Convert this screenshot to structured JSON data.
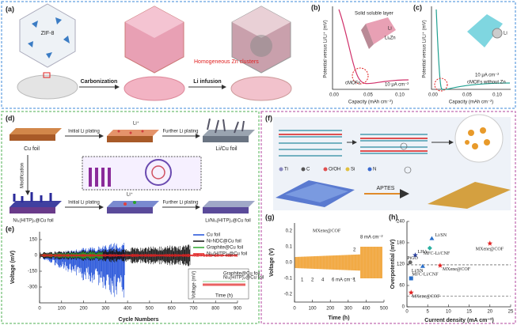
{
  "panels": {
    "a": {
      "label": "(a)",
      "material": "ZIF-8",
      "step1": "Carbonization",
      "step2": "Li infusion",
      "note": "Homogeneous Zn clusters"
    },
    "b": {
      "label": "(b)",
      "ylabel": "Potential versus Li/Li⁺ (mV)",
      "xlabel": "Capacity (mAh cm⁻²)",
      "xticks": [
        "0.00",
        "0.05",
        "0.10"
      ],
      "layer": "Solid soluble layer",
      "li": "Li",
      "alloy": "LiₓZn",
      "curve": "cMOFs",
      "rate": "10 μA cm⁻²"
    },
    "c": {
      "label": "(c)",
      "ylabel": "Potential versus Li/Li⁺ (mV)",
      "xlabel": "Capacity (mAh cm⁻²)",
      "xticks": [
        "0.00",
        "0.05",
        "0.10"
      ],
      "li": "Li",
      "curve": "cMOFs without Zn",
      "rate": "10 μA cm⁻²"
    },
    "d": {
      "label": "(d)",
      "cu": "Cu foil",
      "initial": "Initial Li plating",
      "further": "Further Li plating",
      "licu": "Li/Cu foil",
      "modification": "Modification",
      "ion": "Li⁺",
      "mof": "Ni₃(HITP)₂@Cu foil",
      "initial2": "Initial Li plating",
      "further2": "Further Li plating",
      "ion2": "Li⁺",
      "limof": "Li/Ni₃(HITP)₂@Cu foil"
    },
    "e": {
      "label": "(e)",
      "ylabel": "Voltage (mV)",
      "xlabel": "Cycle Numbers",
      "yticks": [
        150,
        0,
        -150,
        -300
      ],
      "xticks": [
        0,
        100,
        200,
        300,
        400,
        500,
        600,
        700,
        800,
        900
      ],
      "legend": [
        {
          "name": "Cu foil",
          "color": "#1f4fd8"
        },
        {
          "name": "Ni-NDC@Cu foil",
          "color": "#111111"
        },
        {
          "name": "Graphite@Cu foil",
          "color": "#2aa52a"
        },
        {
          "name": "Ni₃(HITP)₂@Cu foil",
          "color": "#e02020"
        }
      ],
      "inset": {
        "ylabel": "Voltage (mV)",
        "xlabel": "Time (h)",
        "legend": [
          "Graphite@Cu foil",
          "Ni₃(HITP)₂@Cu foil"
        ]
      }
    },
    "f": {
      "label": "(f)",
      "legend": [
        "Ti",
        "C",
        "O/OH",
        "Si",
        "N"
      ],
      "step": "APTES"
    },
    "g": {
      "label": "(g)",
      "ylabel": "Voltage (V)",
      "xlabel": "Time (h)",
      "yticks": [
        "0.2",
        "0.1",
        "0.0",
        "-0.1",
        "-0.2"
      ],
      "xticks": [
        0,
        100,
        200,
        300,
        400,
        500
      ],
      "sample": "MXene@COF",
      "rates": [
        "1",
        "2",
        "4",
        "6 mA cm⁻²"
      ],
      "back": [
        "2",
        "1"
      ],
      "high": "8 mA cm⁻²"
    },
    "h": {
      "label": "(h)",
      "ylabel": "Overpotential (mV)",
      "xlabel": "Current density (mA cm⁻²)",
      "xlim": [
        0,
        25
      ],
      "ylim": [
        0,
        240
      ],
      "xticks": [
        0,
        5,
        10,
        15,
        20,
        25
      ],
      "yticks": [
        0,
        60,
        120,
        180,
        240
      ],
      "hlines": [
        118,
        30
      ],
      "points": [
        {
          "name": "Li/SN",
          "x": 6,
          "y": 192,
          "color": "#2a6fc9",
          "marker": "triangle"
        },
        {
          "name": "MFC-Li/CNF",
          "x": 5.5,
          "y": 165,
          "color": "#2bb0a0",
          "marker": "diamond"
        },
        {
          "name": "LHA",
          "x": 2,
          "y": 145,
          "color": "#2a3f9c",
          "marker": "star"
        },
        {
          "name": "PtGO",
          "x": 0.8,
          "y": 125,
          "color": "#666666",
          "marker": "circle"
        },
        {
          "name": "Li/SN",
          "x": 3.8,
          "y": 114,
          "color": "#2a6fc9",
          "marker": "triangle"
        },
        {
          "name": "MXene@COF",
          "x": 8,
          "y": 116,
          "color": "#e02020",
          "marker": "star"
        },
        {
          "name": "MXene@COF",
          "x": 20,
          "y": 178,
          "color": "#e02020",
          "marker": "star"
        },
        {
          "name": "MFC-Li/CNF",
          "x": 1,
          "y": 80,
          "color": "#2a6fc9",
          "marker": "square"
        },
        {
          "name": "MXene@COF",
          "x": 1,
          "y": 40,
          "color": "#e02020",
          "marker": "star"
        }
      ]
    }
  }
}
